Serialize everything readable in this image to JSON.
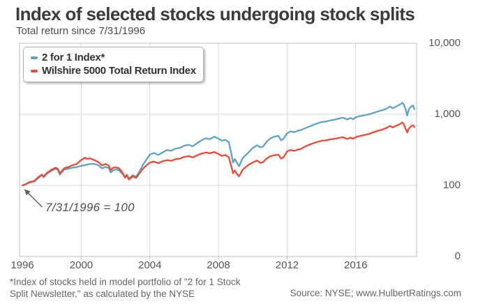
{
  "header": {
    "title": "Index of selected stocks undergoing stock splits",
    "subtitle": "Total return since 7/31/1996"
  },
  "footnote": {
    "line1": "*Index of stocks held in model portfolio of \"2 for 1 Stock",
    "line2": "Split Newsletter,\" as calculated by the NYSE"
  },
  "source": "Source: NYSE; www.HulbertRatings.com",
  "colors": {
    "blue_series": "#5EA3C4",
    "red_series": "#EC4A36",
    "grid": "#d9d9d9",
    "plot_border": "#bfbfbf",
    "arrow": "#5f5f5f"
  },
  "chart_data": {
    "type": "line",
    "title": "Index of selected stocks undergoing stock splits",
    "subtitle": "Total return since 7/31/1996",
    "xlabel": "",
    "ylabel": "",
    "y_scale": "log",
    "grid": true,
    "legend_position": "top-left",
    "x_range": [
      1996.4,
      2019.55
    ],
    "y_top": 10000,
    "y_decades": 3,
    "x_ticks": [
      "1996",
      "2000",
      "2004",
      "2008",
      "2012",
      "2016"
    ],
    "x_tick_years": [
      1996,
      2000,
      2004,
      2008,
      2012,
      2016
    ],
    "y_ticks": [
      {
        "value": 10000,
        "label": "10,000"
      },
      {
        "value": 1000,
        "label": "1,000"
      },
      {
        "value": 100,
        "label": "100"
      },
      {
        "value": 0,
        "label": "0"
      }
    ],
    "annotation": {
      "text": "7/31/1996 = 100",
      "points_to": {
        "x": 1996.58,
        "y": 100
      }
    },
    "x": [
      1996.58,
      1996.75,
      1997.0,
      1997.25,
      1997.5,
      1997.7,
      1997.8,
      1998.0,
      1998.25,
      1998.5,
      1998.63,
      1998.75,
      1999.0,
      1999.25,
      1999.5,
      1999.75,
      2000.0,
      2000.2,
      2000.35,
      2000.5,
      2000.75,
      2001.0,
      2001.2,
      2001.4,
      2001.6,
      2001.72,
      2001.85,
      2002.0,
      2002.2,
      2002.4,
      2002.55,
      2002.65,
      2002.78,
      2003.0,
      2003.2,
      2003.4,
      2003.6,
      2003.8,
      2004.0,
      2004.25,
      2004.5,
      2004.75,
      2005.0,
      2005.25,
      2005.5,
      2005.75,
      2006.0,
      2006.25,
      2006.5,
      2006.75,
      2007.0,
      2007.25,
      2007.5,
      2007.75,
      2008.0,
      2008.2,
      2008.4,
      2008.6,
      2008.75,
      2008.85,
      2008.95,
      2009.1,
      2009.2,
      2009.4,
      2009.6,
      2009.8,
      2010.0,
      2010.25,
      2010.45,
      2010.6,
      2010.8,
      2011.0,
      2011.25,
      2011.5,
      2011.65,
      2011.8,
      2012.0,
      2012.2,
      2012.4,
      2012.6,
      2012.8,
      2013.0,
      2013.25,
      2013.5,
      2013.75,
      2014.0,
      2014.25,
      2014.5,
      2014.75,
      2015.0,
      2015.25,
      2015.5,
      2015.7,
      2015.85,
      2016.0,
      2016.2,
      2016.4,
      2016.6,
      2016.8,
      2017.0,
      2017.25,
      2017.5,
      2017.75,
      2018.0,
      2018.15,
      2018.35,
      2018.55,
      2018.72,
      2018.8,
      2018.9,
      2019.0,
      2019.1,
      2019.25,
      2019.35,
      2019.42
    ],
    "series": [
      {
        "name": "2 for 1 Index*",
        "color": "#5EA3C4",
        "values": [
          100,
          103,
          110,
          113,
          127,
          139,
          130,
          146,
          160,
          171,
          166,
          142,
          167,
          172,
          178,
          181,
          189,
          192,
          197,
          200,
          202,
          192,
          174,
          182,
          176,
          152,
          163,
          168,
          163,
          145,
          130,
          140,
          126,
          139,
          133,
          158,
          196,
          232,
          272,
          285,
          268,
          292,
          315,
          308,
          330,
          338,
          362,
          372,
          356,
          392,
          430,
          460,
          448,
          485,
          455,
          425,
          438,
          405,
          280,
          210,
          235,
          205,
          186,
          240,
          268,
          300,
          335,
          368,
          342,
          352,
          408,
          455,
          485,
          498,
          430,
          455,
          540,
          575,
          560,
          585,
          600,
          630,
          668,
          705,
          742,
          778,
          790,
          818,
          838,
          868,
          898,
          848,
          888,
          852,
          905,
          938,
          958,
          980,
          1005,
          1040,
          1090,
          1135,
          1185,
          1290,
          1215,
          1285,
          1360,
          1455,
          1380,
          1210,
          960,
          1180,
          1300,
          1330,
          1180
        ]
      },
      {
        "name": "Wilshire 5000 Total Return Index",
        "color": "#EC4A36",
        "values": [
          100,
          104,
          112,
          115,
          131,
          142,
          133,
          150,
          166,
          177,
          172,
          148,
          174,
          182,
          192,
          202,
          228,
          245,
          236,
          240,
          228,
          212,
          191,
          200,
          190,
          164,
          177,
          180,
          174,
          152,
          128,
          141,
          121,
          134,
          127,
          150,
          172,
          192,
          210,
          216,
          205,
          219,
          227,
          222,
          234,
          238,
          252,
          258,
          247,
          265,
          279,
          290,
          283,
          295,
          277,
          260,
          268,
          248,
          185,
          148,
          162,
          142,
          134,
          165,
          182,
          198,
          210,
          224,
          207,
          213,
          238,
          256,
          266,
          270,
          238,
          250,
          300,
          315,
          306,
          318,
          326,
          348,
          370,
          390,
          408,
          424,
          430,
          444,
          452,
          464,
          478,
          450,
          470,
          452,
          478,
          492,
          505,
          518,
          532,
          556,
          582,
          606,
          635,
          688,
          652,
          690,
          722,
          768,
          725,
          635,
          555,
          630,
          688,
          700,
          660
        ]
      }
    ]
  }
}
